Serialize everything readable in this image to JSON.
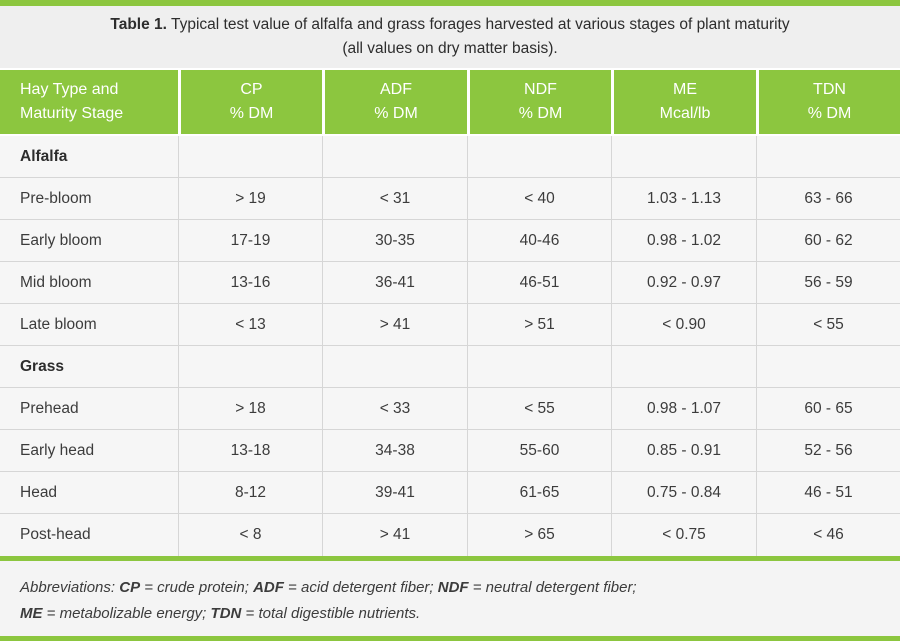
{
  "colors": {
    "accent_green": "#8CC63F",
    "row_background": "#F6F6F6",
    "title_background": "#EFEFEF",
    "border_gray": "#D6D6D6",
    "header_text": "#FFFFFF",
    "body_text": "#3C3C3C"
  },
  "title": {
    "label": "Table 1.",
    "text": " Typical test value of alfalfa and grass forages harvested at various stages of plant maturity",
    "line2": "(all values on dry matter basis)."
  },
  "header": {
    "cols": [
      {
        "line1": "Hay Type and",
        "line2": "Maturity Stage"
      },
      {
        "line1": "CP",
        "line2": "% DM"
      },
      {
        "line1": "ADF",
        "line2": "% DM"
      },
      {
        "line1": "NDF",
        "line2": "% DM"
      },
      {
        "line1": "ME",
        "line2": "Mcal/lb"
      },
      {
        "line1": "TDN",
        "line2": "% DM"
      }
    ]
  },
  "rows": [
    {
      "type": "section",
      "label": "Alfalfa",
      "cells": [
        "",
        "",
        "",
        "",
        ""
      ]
    },
    {
      "type": "data",
      "label": "Pre-bloom",
      "cells": [
        "> 19",
        "< 31",
        "< 40",
        "1.03 - 1.13",
        "63 - 66"
      ]
    },
    {
      "type": "data",
      "label": "Early bloom",
      "cells": [
        "17-19",
        "30-35",
        "40-46",
        "0.98 - 1.02",
        "60 - 62"
      ]
    },
    {
      "type": "data",
      "label": "Mid bloom",
      "cells": [
        "13-16",
        "36-41",
        "46-51",
        "0.92 - 0.97",
        "56 - 59"
      ]
    },
    {
      "type": "data",
      "label": "Late bloom",
      "cells": [
        "< 13",
        "> 41",
        "> 51",
        "< 0.90",
        "< 55"
      ]
    },
    {
      "type": "section",
      "label": "Grass",
      "cells": [
        "",
        "",
        "",
        "",
        ""
      ]
    },
    {
      "type": "data",
      "label": "Prehead",
      "cells": [
        "> 18",
        "< 33",
        "< 55",
        "0.98 - 1.07",
        "60 - 65"
      ]
    },
    {
      "type": "data",
      "label": "Early head",
      "cells": [
        "13-18",
        "34-38",
        "55-60",
        "0.85 - 0.91",
        "52 - 56"
      ]
    },
    {
      "type": "data",
      "label": "Head",
      "cells": [
        "8-12",
        "39-41",
        "61-65",
        "0.75 - 0.84",
        "46 - 51"
      ]
    },
    {
      "type": "data",
      "label": "Post-head",
      "cells": [
        "< 8",
        "> 41",
        "> 65",
        "< 0.75",
        "< 46"
      ]
    }
  ],
  "footnote": {
    "line1": [
      {
        "text": "Abbreviations: ",
        "bold": false
      },
      {
        "text": "CP",
        "bold": true
      },
      {
        "text": " = crude protein; ",
        "bold": false
      },
      {
        "text": "ADF",
        "bold": true
      },
      {
        "text": " = acid detergent fiber; ",
        "bold": false
      },
      {
        "text": "NDF",
        "bold": true
      },
      {
        "text": " = neutral detergent fiber;",
        "bold": false
      }
    ],
    "line2": [
      {
        "text": "ME",
        "bold": true
      },
      {
        "text": " = metabolizable energy; ",
        "bold": false
      },
      {
        "text": "TDN",
        "bold": true
      },
      {
        "text": " = total digestible nutrients.",
        "bold": false
      }
    ]
  }
}
